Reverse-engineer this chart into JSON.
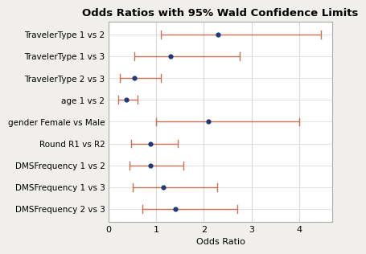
{
  "title": "Odds Ratios with 95% Wald Confidence Limits",
  "xlabel": "Odds Ratio",
  "labels": [
    "TravelerType 1 vs 2",
    "TravelerType 1 vs 3",
    "TravelerType 2 vs 3",
    "age 1 vs 2",
    "gender Female vs Male",
    "Round R1 vs R2",
    "DMSFrequency 1 vs 2",
    "DMSFrequency 1 vs 3",
    "DMSFrequency 2 vs 3"
  ],
  "estimates": [
    2.3,
    1.3,
    0.55,
    0.38,
    2.1,
    0.88,
    0.88,
    1.15,
    1.4
  ],
  "lower": [
    1.1,
    0.55,
    0.25,
    0.2,
    1.0,
    0.48,
    0.45,
    0.52,
    0.72
  ],
  "upper": [
    4.45,
    2.75,
    1.1,
    0.62,
    4.0,
    1.45,
    1.58,
    2.28,
    2.7
  ],
  "xlim": [
    0,
    4.7
  ],
  "xticks": [
    0,
    1,
    2,
    3,
    4
  ],
  "dot_color": "#1F3A7A",
  "line_color": "#C87050",
  "bg_color": "#FFFFFF",
  "outer_bg": "#F0EFEB",
  "grid_color": "#D8D8D8",
  "spine_color": "#AAAAAA",
  "title_fontsize": 9.5,
  "label_fontsize": 7.5,
  "tick_fontsize": 8,
  "cap_size": 0.18,
  "line_width": 1.0,
  "dot_size": 4.5
}
